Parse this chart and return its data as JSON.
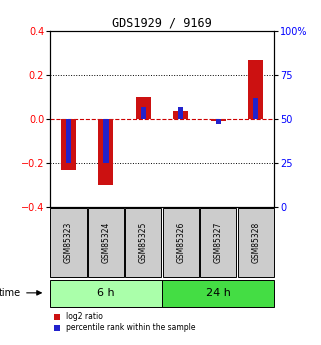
{
  "title": "GDS1929 / 9169",
  "samples": [
    "GSM85323",
    "GSM85324",
    "GSM85325",
    "GSM85326",
    "GSM85327",
    "GSM85328"
  ],
  "log2_ratio": [
    -0.23,
    -0.3,
    0.1,
    0.035,
    -0.01,
    0.27
  ],
  "percentile_rank": [
    25,
    25,
    57,
    57,
    47,
    62
  ],
  "groups": [
    {
      "label": "6 h",
      "indices": [
        0,
        1,
        2
      ],
      "color": "#aaffaa"
    },
    {
      "label": "24 h",
      "indices": [
        3,
        4,
        5
      ],
      "color": "#44dd44"
    }
  ],
  "time_label": "time",
  "ylim_left": [
    -0.4,
    0.4
  ],
  "ylim_right": [
    0,
    100
  ],
  "yticks_left": [
    -0.4,
    -0.2,
    0.0,
    0.2,
    0.4
  ],
  "yticks_right": [
    0,
    25,
    50,
    75,
    100
  ],
  "ytick_labels_right": [
    "0",
    "25",
    "50",
    "75",
    "100%"
  ],
  "bar_color_log2": "#cc1111",
  "bar_color_pct": "#2222cc",
  "bar_width": 0.4,
  "zero_line_color": "#cc0000",
  "bg_plot": "#ffffff",
  "bg_sample_box": "#cccccc",
  "legend_log2": "log2 ratio",
  "legend_pct": "percentile rank within the sample"
}
